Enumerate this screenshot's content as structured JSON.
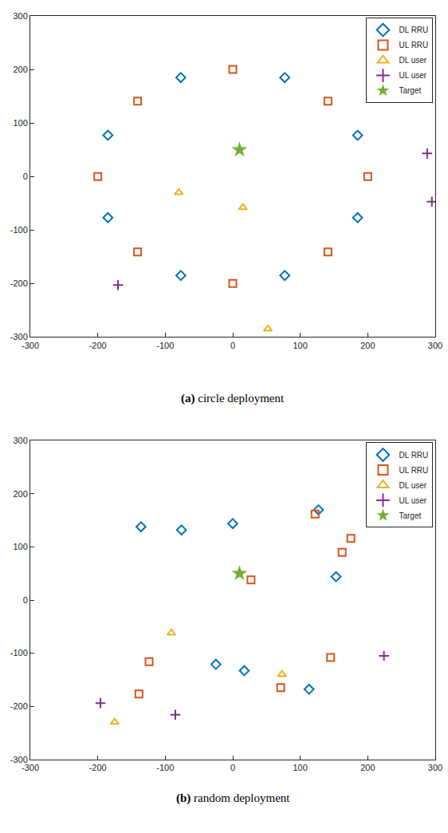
{
  "chart_data": [
    {
      "type": "scatter",
      "title": "(a) circle deployment",
      "xlim": [
        -300,
        300
      ],
      "ylim": [
        -300,
        300
      ],
      "xticks": [
        -300,
        -200,
        -100,
        0,
        100,
        200,
        300
      ],
      "yticks": [
        -300,
        -200,
        -100,
        0,
        100,
        200,
        300
      ],
      "grid": false,
      "legend": "top right",
      "series": [
        {
          "name": "DL RRU",
          "color": "#0072BD",
          "marker": "diamond",
          "x": [
            -77,
            77,
            -185,
            185,
            -185,
            185,
            -77,
            77
          ],
          "y": [
            185,
            185,
            77,
            77,
            -77,
            -77,
            -185,
            -185
          ]
        },
        {
          "name": "UL RRU",
          "color": "#D95319",
          "marker": "square",
          "x": [
            0,
            141,
            -141,
            -200,
            200,
            -141,
            141,
            0
          ],
          "y": [
            200,
            141,
            141,
            0,
            0,
            -141,
            -141,
            -200
          ]
        },
        {
          "name": "DL user",
          "color": "#EDB120",
          "marker": "triangle",
          "x": [
            -80,
            15,
            52
          ],
          "y": [
            -30,
            -58,
            -285
          ]
        },
        {
          "name": "UL user",
          "color": "#7E2F8E",
          "marker": "plus",
          "x": [
            288,
            295,
            -170
          ],
          "y": [
            43,
            -47,
            -203
          ]
        },
        {
          "name": "Target",
          "color": "#77AC30",
          "marker": "star",
          "x": [
            10
          ],
          "y": [
            50
          ]
        }
      ]
    },
    {
      "type": "scatter",
      "title": "(b) random deployment",
      "xlim": [
        -300,
        300
      ],
      "ylim": [
        -300,
        300
      ],
      "xticks": [
        -300,
        -200,
        -100,
        0,
        100,
        200,
        300
      ],
      "yticks": [
        -300,
        -200,
        -100,
        0,
        100,
        200,
        300
      ],
      "grid": false,
      "legend": "top right",
      "series": [
        {
          "name": "DL RRU",
          "color": "#0072BD",
          "marker": "diamond",
          "x": [
            -136,
            -76,
            0,
            127,
            153,
            -25,
            17,
            113
          ],
          "y": [
            138,
            132,
            144,
            170,
            44,
            -121,
            -133,
            -168
          ]
        },
        {
          "name": "UL RRU",
          "color": "#D95319",
          "marker": "square",
          "x": [
            122,
            175,
            162,
            27,
            -124,
            -139,
            145,
            71
          ],
          "y": [
            162,
            116,
            90,
            38,
            -116,
            -177,
            -108,
            -165
          ]
        },
        {
          "name": "DL user",
          "color": "#EDB120",
          "marker": "triangle",
          "x": [
            -91,
            73,
            -175
          ],
          "y": [
            -62,
            -140,
            -230
          ]
        },
        {
          "name": "UL user",
          "color": "#7E2F8E",
          "marker": "plus",
          "x": [
            -196,
            -85,
            224
          ],
          "y": [
            -194,
            -216,
            -105
          ]
        },
        {
          "name": "Target",
          "color": "#77AC30",
          "marker": "star",
          "x": [
            10
          ],
          "y": [
            50
          ]
        }
      ]
    }
  ]
}
